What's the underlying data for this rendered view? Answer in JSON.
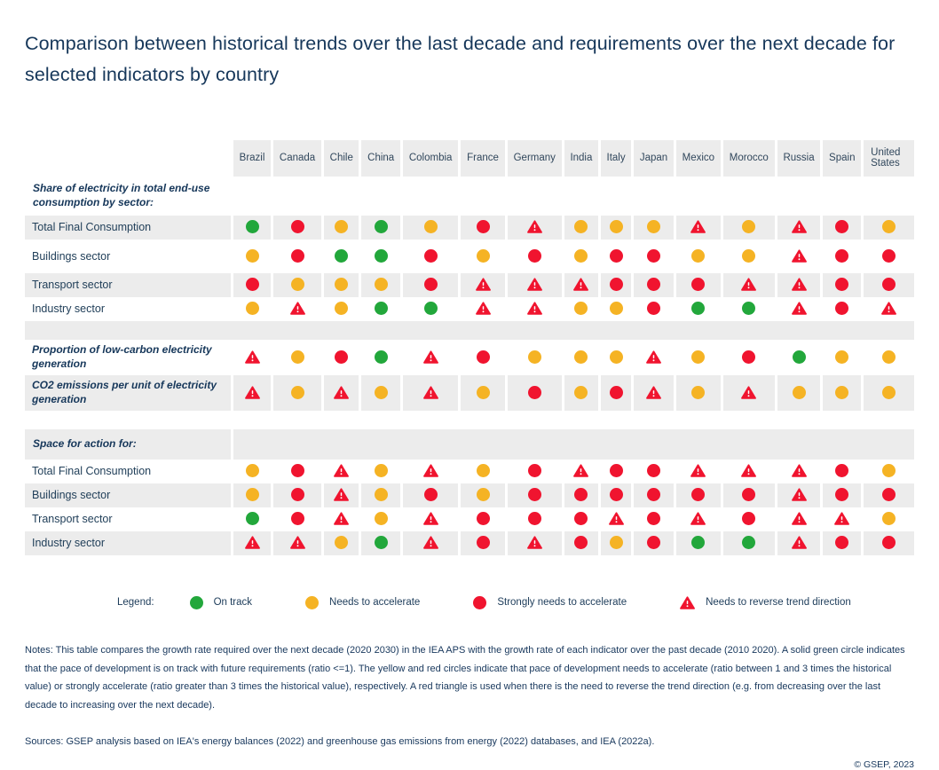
{
  "title": "Comparison between historical trends over the last decade and requirements over the next decade for selected indicators by country",
  "colors": {
    "green": "#22A73B",
    "yellow": "#F5B324",
    "red": "#F0142F",
    "row_gray": "#ECECEC",
    "text_navy": "#17375C"
  },
  "legend": {
    "title": "Legend:",
    "items": [
      {
        "symbol": "green",
        "label": "On track"
      },
      {
        "symbol": "yellow",
        "label": "Needs to accelerate"
      },
      {
        "symbol": "red",
        "label": "Strongly needs to accelerate"
      },
      {
        "symbol": "triangle",
        "label": "Needs to reverse trend direction"
      }
    ]
  },
  "chart_data": {
    "type": "heatmap",
    "value_meaning": {
      "green": "On track",
      "yellow": "Needs to accelerate",
      "red": "Strongly needs to accelerate",
      "triangle": "Needs to reverse trend direction"
    },
    "categories": [
      "Brazil",
      "Canada",
      "Chile",
      "China",
      "Colombia",
      "France",
      "Germany",
      "India",
      "Italy",
      "Japan",
      "Mexico",
      "Morocco",
      "Russia",
      "Spain",
      "United States"
    ],
    "rows": [
      {
        "type": "section",
        "shade": "white",
        "label": "Share of electricity in total end-use consumption by sector:"
      },
      {
        "type": "data",
        "shade": "gray",
        "label": "Total Final Consumption",
        "values": [
          "green",
          "red",
          "yellow",
          "green",
          "yellow",
          "red",
          "triangle",
          "yellow",
          "yellow",
          "yellow",
          "triangle",
          "yellow",
          "triangle",
          "red",
          "yellow"
        ]
      },
      {
        "type": "data",
        "shade": "white",
        "roomy": true,
        "label": "Buildings sector",
        "values": [
          "yellow",
          "red",
          "green",
          "green",
          "red",
          "yellow",
          "red",
          "yellow",
          "red",
          "red",
          "yellow",
          "yellow",
          "triangle",
          "red",
          "red"
        ]
      },
      {
        "type": "data",
        "shade": "gray",
        "label": "Transport sector",
        "values": [
          "red",
          "yellow",
          "yellow",
          "yellow",
          "red",
          "triangle",
          "triangle",
          "triangle",
          "red",
          "red",
          "red",
          "triangle",
          "triangle",
          "red",
          "red"
        ]
      },
      {
        "type": "data",
        "shade": "white",
        "label": "Industry sector",
        "values": [
          "yellow",
          "triangle",
          "yellow",
          "green",
          "green",
          "triangle",
          "triangle",
          "yellow",
          "yellow",
          "red",
          "green",
          "green",
          "triangle",
          "red",
          "triangle"
        ]
      },
      {
        "type": "spacer",
        "shade": "gray"
      },
      {
        "type": "data",
        "shade": "white",
        "tall": true,
        "bold": true,
        "label": "Proportion of low-carbon electricity generation",
        "values": [
          "triangle",
          "yellow",
          "red",
          "green",
          "triangle",
          "red",
          "yellow",
          "yellow",
          "yellow",
          "triangle",
          "yellow",
          "red",
          "green",
          "yellow",
          "yellow"
        ]
      },
      {
        "type": "data",
        "shade": "gray",
        "tall": true,
        "bold": true,
        "label": "CO2 emissions per unit of electricity generation",
        "values": [
          "triangle",
          "yellow",
          "triangle",
          "yellow",
          "triangle",
          "yellow",
          "red",
          "yellow",
          "red",
          "triangle",
          "yellow",
          "triangle",
          "yellow",
          "yellow",
          "yellow"
        ]
      },
      {
        "type": "spacer",
        "shade": "white"
      },
      {
        "type": "section",
        "shade": "gray",
        "label": "Space for action for:"
      },
      {
        "type": "data",
        "shade": "white",
        "label": "Total Final Consumption",
        "values": [
          "yellow",
          "red",
          "triangle",
          "yellow",
          "triangle",
          "yellow",
          "red",
          "triangle",
          "red",
          "red",
          "triangle",
          "triangle",
          "triangle",
          "red",
          "yellow"
        ]
      },
      {
        "type": "data",
        "shade": "gray",
        "label": "Buildings sector",
        "values": [
          "yellow",
          "red",
          "triangle",
          "yellow",
          "red",
          "yellow",
          "red",
          "red",
          "red",
          "red",
          "red",
          "red",
          "triangle",
          "red",
          "red"
        ]
      },
      {
        "type": "data",
        "shade": "white",
        "label": "Transport sector",
        "values": [
          "green",
          "red",
          "triangle",
          "yellow",
          "triangle",
          "red",
          "red",
          "red",
          "triangle",
          "red",
          "triangle",
          "red",
          "triangle",
          "triangle",
          "yellow"
        ]
      },
      {
        "type": "data",
        "shade": "gray",
        "label": "Industry sector",
        "values": [
          "triangle",
          "triangle",
          "yellow",
          "green",
          "triangle",
          "red",
          "triangle",
          "red",
          "yellow",
          "red",
          "green",
          "green",
          "triangle",
          "red",
          "red"
        ]
      }
    ]
  },
  "notes": "Notes: This table compares the growth rate required over the next decade (2020 2030) in the IEA APS with the growth rate of each indicator over the past decade (2010 2020). A solid green circle indicates that the pace of development is on track with future requirements (ratio <=1). The yellow and red circles indicate that pace of development needs to accelerate (ratio between 1 and 3 times the historical value) or strongly accelerate (ratio greater than 3 times the historical value), respectively. A red triangle is used when there is the need to reverse the trend direction (e.g. from decreasing over the last decade to increasing over the next decade).",
  "sources": "Sources: GSEP analysis based on IEA's energy balances (2022) and greenhouse gas emissions from energy (2022) databases, and IEA (2022a).",
  "copyright": "© GSEP, 2023"
}
